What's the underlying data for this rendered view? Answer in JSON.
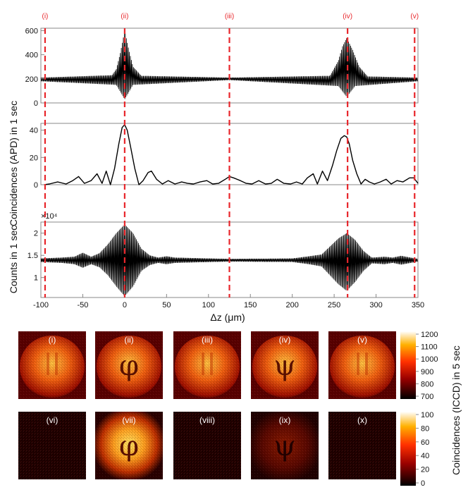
{
  "colors": {
    "marker": "#e8262b",
    "signal": "#000000",
    "frame": "#888888"
  },
  "chart_data": [
    {
      "type": "line",
      "panel": "top",
      "series": [
        {
          "values": [
            [
              -100,
              210
            ],
            [
              -15,
              230
            ],
            [
              -10,
              280
            ],
            [
              -5,
              420
            ],
            [
              0,
              600
            ],
            [
              5,
              440
            ],
            [
              10,
              300
            ],
            [
              20,
              225
            ],
            [
              125,
              210
            ],
            [
              245,
              225
            ],
            [
              255,
              350
            ],
            [
              260,
              470
            ],
            [
              265,
              540
            ],
            [
              272,
              440
            ],
            [
              280,
              300
            ],
            [
              290,
              220
            ],
            [
              350,
              210
            ]
          ],
          "note_envelope_low": [
            [
              -100,
              180
            ],
            [
              -10,
              150
            ],
            [
              0,
              30
            ],
            [
              10,
              150
            ],
            [
              125,
              190
            ],
            [
              255,
              140
            ],
            [
              265,
              50
            ],
            [
              275,
              140
            ],
            [
              350,
              180
            ]
          ]
        }
      ],
      "xlim": [
        -100,
        350
      ],
      "ylim": [
        0,
        620
      ],
      "yticks": [
        "0",
        "200",
        "400",
        "600"
      ]
    },
    {
      "type": "line",
      "panel": "middle",
      "series": [
        {
          "x": [
            -96,
            -90,
            -80,
            -70,
            -62,
            -55,
            -48,
            -40,
            -33,
            -27,
            -22,
            -17,
            -12,
            -7,
            -3,
            0,
            3,
            7,
            12,
            17,
            22,
            28,
            32,
            38,
            45,
            52,
            60,
            68,
            75,
            82,
            90,
            98,
            105,
            112,
            120,
            125,
            130,
            138,
            145,
            152,
            160,
            168,
            175,
            182,
            190,
            198,
            205,
            212,
            218,
            225,
            230,
            236,
            242,
            248,
            253,
            258,
            262,
            265,
            268,
            272,
            277,
            282,
            287,
            292,
            298,
            305,
            312,
            318,
            325,
            332,
            340,
            345,
            350
          ],
          "values": [
            0,
            0.5,
            2,
            0.5,
            3,
            6,
            1,
            3,
            8,
            1,
            10,
            0,
            12,
            30,
            42,
            44,
            40,
            28,
            12,
            0,
            3,
            9,
            10,
            4,
            0.5,
            3,
            0.5,
            2,
            1,
            0.5,
            2,
            3,
            0.5,
            1,
            4,
            6,
            5,
            3,
            1,
            0.5,
            3,
            0.5,
            1,
            4,
            1,
            0.5,
            2,
            0.5,
            5,
            8,
            0.5,
            10,
            3,
            14,
            25,
            34,
            36,
            35,
            30,
            18,
            8,
            0.5,
            4,
            2,
            0.5,
            2,
            4,
            0.5,
            3,
            2,
            5,
            5,
            1
          ]
        }
      ],
      "xlim": [
        -100,
        350
      ],
      "ylim": [
        0,
        45
      ],
      "yticks": [
        "0",
        "20",
        "40"
      ]
    },
    {
      "type": "line",
      "panel": "bottom",
      "y_multiplier": "×10⁴",
      "series": [
        {
          "envelope_high": [
            [
              -100,
              1.43
            ],
            [
              -75,
              1.45
            ],
            [
              -60,
              1.47
            ],
            [
              -50,
              1.56
            ],
            [
              -40,
              1.47
            ],
            [
              -30,
              1.55
            ],
            [
              -20,
              1.75
            ],
            [
              -10,
              2.0
            ],
            [
              0,
              2.2
            ],
            [
              10,
              2.0
            ],
            [
              20,
              1.65
            ],
            [
              30,
              1.5
            ],
            [
              40,
              1.45
            ],
            [
              50,
              1.48
            ],
            [
              60,
              1.45
            ],
            [
              80,
              1.44
            ],
            [
              125,
              1.42
            ],
            [
              200,
              1.43
            ],
            [
              220,
              1.48
            ],
            [
              235,
              1.52
            ],
            [
              245,
              1.7
            ],
            [
              255,
              1.88
            ],
            [
              265,
              2.0
            ],
            [
              275,
              1.85
            ],
            [
              285,
              1.6
            ],
            [
              295,
              1.45
            ],
            [
              310,
              1.47
            ],
            [
              320,
              1.45
            ],
            [
              330,
              1.49
            ],
            [
              350,
              1.42
            ]
          ],
          "envelope_low": [
            [
              -100,
              1.35
            ],
            [
              -75,
              1.33
            ],
            [
              -60,
              1.3
            ],
            [
              -50,
              1.22
            ],
            [
              -40,
              1.3
            ],
            [
              -30,
              1.23
            ],
            [
              -20,
              1.05
            ],
            [
              -10,
              0.8
            ],
            [
              0,
              0.58
            ],
            [
              10,
              0.8
            ],
            [
              20,
              1.15
            ],
            [
              30,
              1.28
            ],
            [
              40,
              1.33
            ],
            [
              50,
              1.3
            ],
            [
              60,
              1.33
            ],
            [
              80,
              1.34
            ],
            [
              125,
              1.36
            ],
            [
              200,
              1.35
            ],
            [
              220,
              1.3
            ],
            [
              235,
              1.25
            ],
            [
              245,
              1.05
            ],
            [
              255,
              0.85
            ],
            [
              265,
              0.7
            ],
            [
              275,
              0.9
            ],
            [
              285,
              1.15
            ],
            [
              295,
              1.32
            ],
            [
              310,
              1.3
            ],
            [
              320,
              1.33
            ],
            [
              330,
              1.29
            ],
            [
              350,
              1.36
            ]
          ]
        }
      ],
      "xlim": [
        -100,
        350
      ],
      "ylim": [
        0.55,
        2.25
      ],
      "yticks": [
        "1",
        "1.5",
        "2"
      ],
      "xticks": [
        "-100",
        "-50",
        "0",
        "50",
        "100",
        "150",
        "200",
        "250",
        "300",
        "350"
      ],
      "xtick_values": [
        -100,
        -50,
        0,
        50,
        100,
        150,
        200,
        250,
        300,
        350
      ]
    }
  ],
  "markers": {
    "labels": [
      "(i)",
      "(ii)",
      "(iii)",
      "(iv)",
      "(v)"
    ],
    "positions": [
      -95,
      0,
      125,
      266,
      346
    ]
  },
  "ylabel_shared": "Coincidences (APD) in 1 sec",
  "ylabel_bottom": "Counts in 1 sec",
  "xlabel": "Δz (μm)",
  "images": {
    "row1_labels": [
      "(i)",
      "(ii)",
      "(iii)",
      "(iv)",
      "(v)"
    ],
    "row2_labels": [
      "(vi)",
      "(vii)",
      "(viii)",
      "(ix)",
      "(x)"
    ],
    "row1_symbols": [
      "",
      "φ",
      "",
      "ψ",
      ""
    ],
    "row2_symbols": [
      "",
      "φ",
      "",
      "ψ",
      ""
    ],
    "colorbar1": {
      "ticks": [
        "1200",
        "1100",
        "1000",
        "900",
        "800",
        "700"
      ],
      "label": "Coincidences (ICCD) in 5 sec"
    },
    "colorbar2": {
      "ticks": [
        "100",
        "80",
        "60",
        "40",
        "20",
        "0"
      ]
    }
  }
}
